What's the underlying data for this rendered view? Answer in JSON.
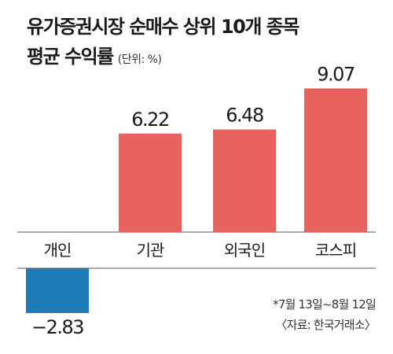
{
  "title": {
    "line1": "유가증권시장 순매수 상위 10개 종목",
    "line2": "평균 수익률",
    "unit": "(단위: %)"
  },
  "notes": {
    "period": "*7월 13일~8월 12일",
    "source": "〈자료: 한국거래소〉"
  },
  "colors": {
    "positive": "#e8635f",
    "negative": "#1f7ab8",
    "axis": "#555555"
  },
  "chart_data": {
    "type": "bar",
    "categories": [
      "개인",
      "기관",
      "외국인",
      "코스피"
    ],
    "values": [
      -2.83,
      6.22,
      6.48,
      9.07
    ],
    "value_labels": [
      "−2.83",
      "6.22",
      "6.48",
      "9.07"
    ],
    "title": "유가증권시장 순매수 상위 10개 종목 평균 수익률",
    "ylabel": "%",
    "ylim": [
      -2.83,
      9.07
    ],
    "grid": false
  }
}
